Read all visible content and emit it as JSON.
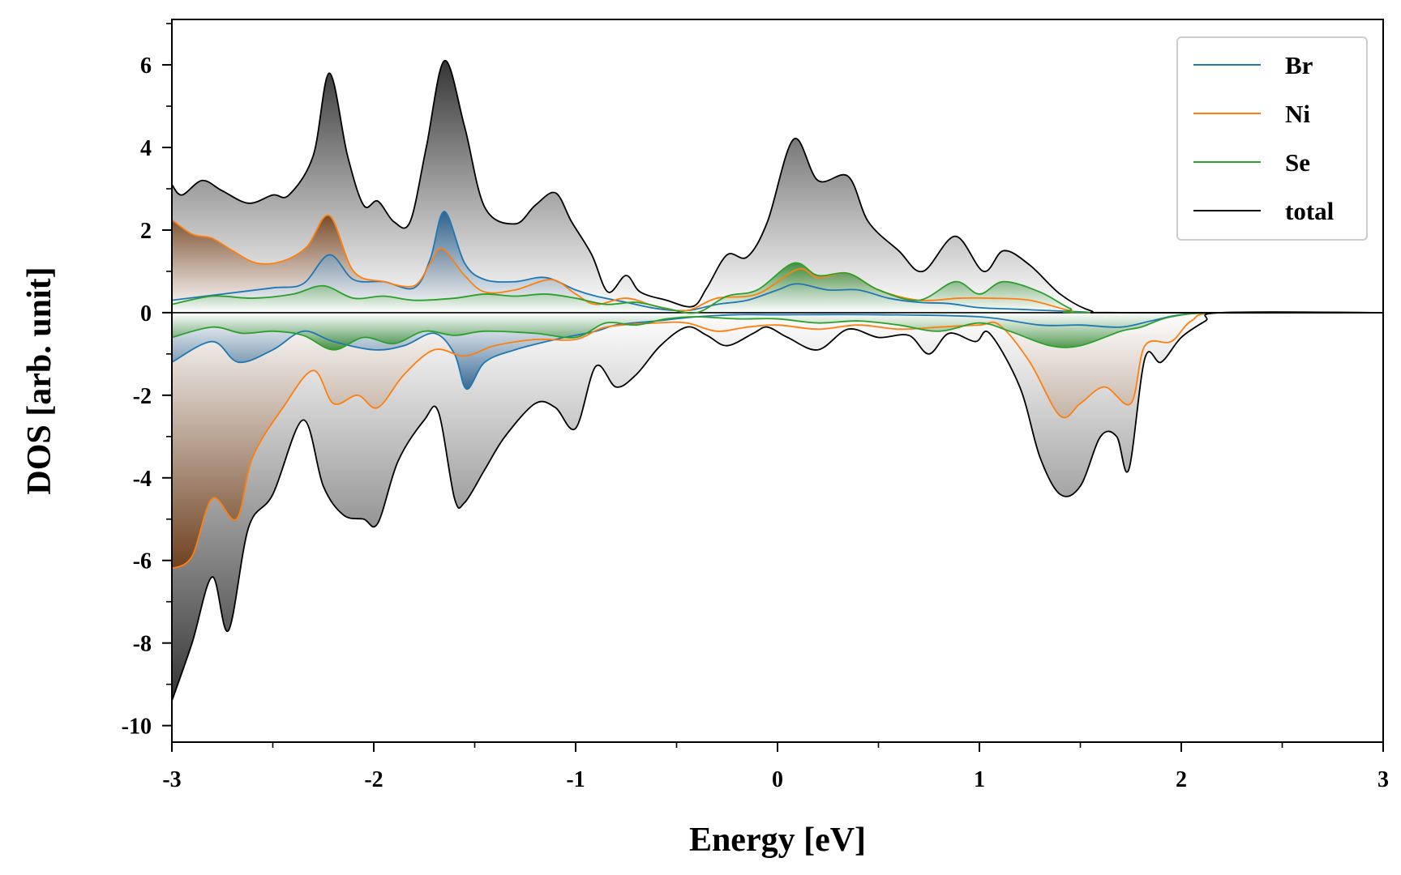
{
  "chart_data": {
    "type": "area",
    "title": "",
    "xlabel": "Energy [eV]",
    "ylabel": "DOS [arb. unit]",
    "xlim": [
      -3,
      3
    ],
    "ylim": [
      -10.4,
      7.1
    ],
    "xticks": [
      -3,
      -2,
      -1,
      0,
      1,
      2,
      3
    ],
    "yticks": [
      -10,
      -8,
      -6,
      -4,
      -2,
      0,
      2,
      4,
      6
    ],
    "grid": false,
    "legend_position": "upper-right",
    "series": [
      {
        "name": "Br",
        "color": "#1f77b4",
        "up": [
          [
            -3,
            0.3
          ],
          [
            -2.75,
            0.45
          ],
          [
            -2.5,
            0.6
          ],
          [
            -2.35,
            0.7
          ],
          [
            -2.22,
            1.4
          ],
          [
            -2.1,
            0.8
          ],
          [
            -1.95,
            0.75
          ],
          [
            -1.8,
            0.6
          ],
          [
            -1.72,
            1.3
          ],
          [
            -1.65,
            2.45
          ],
          [
            -1.55,
            1.2
          ],
          [
            -1.45,
            0.8
          ],
          [
            -1.3,
            0.75
          ],
          [
            -1.15,
            0.85
          ],
          [
            -1.0,
            0.55
          ],
          [
            -0.9,
            0.4
          ],
          [
            -0.75,
            0.25
          ],
          [
            -0.6,
            0.1
          ],
          [
            -0.45,
            0.05
          ],
          [
            -0.3,
            0.2
          ],
          [
            -0.15,
            0.3
          ],
          [
            0.0,
            0.55
          ],
          [
            0.1,
            0.7
          ],
          [
            0.25,
            0.55
          ],
          [
            0.4,
            0.55
          ],
          [
            0.55,
            0.35
          ],
          [
            0.7,
            0.25
          ],
          [
            0.85,
            0.22
          ],
          [
            1.0,
            0.12
          ],
          [
            1.2,
            0.08
          ],
          [
            1.5,
            0.02
          ],
          [
            1.7,
            0.0
          ],
          [
            3,
            0
          ]
        ],
        "down": [
          [
            -3,
            -1.2
          ],
          [
            -2.8,
            -0.7
          ],
          [
            -2.67,
            -1.2
          ],
          [
            -2.5,
            -0.9
          ],
          [
            -2.35,
            -0.45
          ],
          [
            -2.2,
            -0.7
          ],
          [
            -2.0,
            -0.9
          ],
          [
            -1.85,
            -0.8
          ],
          [
            -1.7,
            -0.5
          ],
          [
            -1.6,
            -1.0
          ],
          [
            -1.54,
            -1.85
          ],
          [
            -1.45,
            -1.2
          ],
          [
            -1.3,
            -0.9
          ],
          [
            -1.1,
            -0.65
          ],
          [
            -0.9,
            -0.45
          ],
          [
            -0.8,
            -0.3
          ],
          [
            -0.6,
            -0.2
          ],
          [
            -0.4,
            -0.1
          ],
          [
            -0.2,
            -0.05
          ],
          [
            0.0,
            -0.05
          ],
          [
            0.5,
            -0.05
          ],
          [
            1.0,
            -0.1
          ],
          [
            1.3,
            -0.3
          ],
          [
            1.5,
            -0.3
          ],
          [
            1.7,
            -0.35
          ],
          [
            1.85,
            -0.2
          ],
          [
            2.0,
            -0.05
          ],
          [
            2.2,
            0
          ],
          [
            3,
            0
          ]
        ]
      },
      {
        "name": "Ni",
        "color": "#ff7f0e",
        "up": [
          [
            -3,
            2.25
          ],
          [
            -2.9,
            1.9
          ],
          [
            -2.8,
            1.8
          ],
          [
            -2.7,
            1.5
          ],
          [
            -2.58,
            1.2
          ],
          [
            -2.45,
            1.25
          ],
          [
            -2.33,
            1.6
          ],
          [
            -2.22,
            2.35
          ],
          [
            -2.1,
            1.0
          ],
          [
            -1.95,
            0.75
          ],
          [
            -1.8,
            0.65
          ],
          [
            -1.72,
            1.2
          ],
          [
            -1.66,
            1.55
          ],
          [
            -1.55,
            0.9
          ],
          [
            -1.45,
            0.5
          ],
          [
            -1.3,
            0.55
          ],
          [
            -1.12,
            0.8
          ],
          [
            -1.0,
            0.45
          ],
          [
            -0.9,
            0.2
          ],
          [
            -0.75,
            0.35
          ],
          [
            -0.6,
            0.15
          ],
          [
            -0.45,
            0.05
          ],
          [
            -0.3,
            0.35
          ],
          [
            -0.1,
            0.45
          ],
          [
            0.1,
            1.05
          ],
          [
            0.2,
            0.85
          ],
          [
            0.35,
            0.95
          ],
          [
            0.5,
            0.55
          ],
          [
            0.7,
            0.3
          ],
          [
            0.9,
            0.35
          ],
          [
            1.05,
            0.35
          ],
          [
            1.25,
            0.3
          ],
          [
            1.45,
            0.05
          ],
          [
            1.6,
            0
          ],
          [
            3,
            0
          ]
        ],
        "down": [
          [
            -3,
            -6.2
          ],
          [
            -2.9,
            -5.9
          ],
          [
            -2.8,
            -4.5
          ],
          [
            -2.68,
            -5.0
          ],
          [
            -2.6,
            -3.5
          ],
          [
            -2.45,
            -2.3
          ],
          [
            -2.3,
            -1.4
          ],
          [
            -2.2,
            -2.2
          ],
          [
            -2.08,
            -2.0
          ],
          [
            -1.98,
            -2.3
          ],
          [
            -1.85,
            -1.5
          ],
          [
            -1.7,
            -0.9
          ],
          [
            -1.55,
            -1.05
          ],
          [
            -1.4,
            -0.8
          ],
          [
            -1.2,
            -0.65
          ],
          [
            -1.0,
            -0.65
          ],
          [
            -0.85,
            -0.35
          ],
          [
            -0.6,
            -0.25
          ],
          [
            -0.45,
            -0.25
          ],
          [
            -0.3,
            -0.45
          ],
          [
            -0.15,
            -0.35
          ],
          [
            0.0,
            -0.3
          ],
          [
            0.2,
            -0.4
          ],
          [
            0.4,
            -0.3
          ],
          [
            0.6,
            -0.4
          ],
          [
            0.8,
            -0.35
          ],
          [
            1.0,
            -0.3
          ],
          [
            1.1,
            -0.3
          ],
          [
            1.25,
            -1.2
          ],
          [
            1.4,
            -2.5
          ],
          [
            1.5,
            -2.2
          ],
          [
            1.62,
            -1.8
          ],
          [
            1.75,
            -2.2
          ],
          [
            1.82,
            -0.8
          ],
          [
            1.95,
            -0.7
          ],
          [
            2.05,
            -0.2
          ],
          [
            2.2,
            0
          ],
          [
            3,
            0
          ]
        ]
      },
      {
        "name": "Se",
        "color": "#2ca02c",
        "up": [
          [
            -3,
            0.2
          ],
          [
            -2.8,
            0.4
          ],
          [
            -2.6,
            0.35
          ],
          [
            -2.4,
            0.45
          ],
          [
            -2.25,
            0.65
          ],
          [
            -2.1,
            0.35
          ],
          [
            -1.95,
            0.4
          ],
          [
            -1.8,
            0.3
          ],
          [
            -1.6,
            0.35
          ],
          [
            -1.45,
            0.45
          ],
          [
            -1.3,
            0.4
          ],
          [
            -1.15,
            0.45
          ],
          [
            -1.0,
            0.35
          ],
          [
            -0.85,
            0.2
          ],
          [
            -0.7,
            0.25
          ],
          [
            -0.55,
            0.1
          ],
          [
            -0.4,
            0.0
          ],
          [
            -0.25,
            0.4
          ],
          [
            -0.1,
            0.55
          ],
          [
            0.08,
            1.2
          ],
          [
            0.2,
            0.9
          ],
          [
            0.35,
            0.95
          ],
          [
            0.5,
            0.55
          ],
          [
            0.7,
            0.3
          ],
          [
            0.88,
            0.75
          ],
          [
            1.0,
            0.45
          ],
          [
            1.12,
            0.75
          ],
          [
            1.3,
            0.5
          ],
          [
            1.45,
            0.1
          ],
          [
            1.55,
            0
          ],
          [
            3,
            0
          ]
        ],
        "down": [
          [
            -3,
            -0.6
          ],
          [
            -2.8,
            -0.35
          ],
          [
            -2.65,
            -0.5
          ],
          [
            -2.5,
            -0.45
          ],
          [
            -2.35,
            -0.55
          ],
          [
            -2.2,
            -0.9
          ],
          [
            -2.05,
            -0.6
          ],
          [
            -1.9,
            -0.75
          ],
          [
            -1.75,
            -0.45
          ],
          [
            -1.6,
            -0.55
          ],
          [
            -1.45,
            -0.45
          ],
          [
            -1.2,
            -0.5
          ],
          [
            -1.0,
            -0.6
          ],
          [
            -0.85,
            -0.25
          ],
          [
            -0.7,
            -0.3
          ],
          [
            -0.55,
            -0.15
          ],
          [
            -0.4,
            -0.1
          ],
          [
            -0.2,
            -0.15
          ],
          [
            0.0,
            -0.15
          ],
          [
            0.2,
            -0.25
          ],
          [
            0.4,
            -0.2
          ],
          [
            0.6,
            -0.3
          ],
          [
            0.8,
            -0.45
          ],
          [
            1.0,
            -0.25
          ],
          [
            1.15,
            -0.45
          ],
          [
            1.35,
            -0.8
          ],
          [
            1.5,
            -0.8
          ],
          [
            1.7,
            -0.45
          ],
          [
            1.8,
            -0.35
          ],
          [
            1.95,
            -0.1
          ],
          [
            2.2,
            0
          ],
          [
            3,
            0
          ]
        ]
      },
      {
        "name": "total",
        "color": "#000000",
        "up": [
          [
            -3,
            3.1
          ],
          [
            -2.95,
            2.85
          ],
          [
            -2.85,
            3.2
          ],
          [
            -2.75,
            2.95
          ],
          [
            -2.62,
            2.65
          ],
          [
            -2.5,
            2.85
          ],
          [
            -2.42,
            2.85
          ],
          [
            -2.3,
            3.8
          ],
          [
            -2.22,
            5.8
          ],
          [
            -2.13,
            3.8
          ],
          [
            -2.05,
            2.6
          ],
          [
            -1.98,
            2.7
          ],
          [
            -1.9,
            2.2
          ],
          [
            -1.82,
            2.2
          ],
          [
            -1.74,
            4.0
          ],
          [
            -1.65,
            6.1
          ],
          [
            -1.55,
            4.5
          ],
          [
            -1.45,
            2.55
          ],
          [
            -1.3,
            2.15
          ],
          [
            -1.2,
            2.6
          ],
          [
            -1.1,
            2.9
          ],
          [
            -1.02,
            2.2
          ],
          [
            -0.92,
            1.4
          ],
          [
            -0.84,
            0.5
          ],
          [
            -0.75,
            0.9
          ],
          [
            -0.68,
            0.5
          ],
          [
            -0.55,
            0.3
          ],
          [
            -0.42,
            0.15
          ],
          [
            -0.35,
            0.6
          ],
          [
            -0.25,
            1.4
          ],
          [
            -0.15,
            1.35
          ],
          [
            -0.05,
            2.2
          ],
          [
            0.08,
            4.2
          ],
          [
            0.2,
            3.2
          ],
          [
            0.35,
            3.3
          ],
          [
            0.45,
            2.2
          ],
          [
            0.6,
            1.5
          ],
          [
            0.72,
            1.0
          ],
          [
            0.88,
            1.85
          ],
          [
            1.02,
            1.0
          ],
          [
            1.12,
            1.5
          ],
          [
            1.25,
            1.15
          ],
          [
            1.4,
            0.45
          ],
          [
            1.55,
            0.05
          ],
          [
            1.7,
            0.0
          ],
          [
            3,
            0
          ]
        ],
        "down": [
          [
            -3,
            -9.4
          ],
          [
            -2.9,
            -8.0
          ],
          [
            -2.8,
            -6.4
          ],
          [
            -2.72,
            -7.7
          ],
          [
            -2.62,
            -5.2
          ],
          [
            -2.5,
            -4.4
          ],
          [
            -2.35,
            -2.6
          ],
          [
            -2.25,
            -4.2
          ],
          [
            -2.15,
            -4.9
          ],
          [
            -2.05,
            -5.0
          ],
          [
            -1.98,
            -5.1
          ],
          [
            -1.88,
            -3.6
          ],
          [
            -1.75,
            -2.6
          ],
          [
            -1.68,
            -2.4
          ],
          [
            -1.6,
            -4.5
          ],
          [
            -1.55,
            -4.6
          ],
          [
            -1.45,
            -3.8
          ],
          [
            -1.35,
            -3.0
          ],
          [
            -1.2,
            -2.2
          ],
          [
            -1.1,
            -2.3
          ],
          [
            -1.0,
            -2.8
          ],
          [
            -0.9,
            -1.3
          ],
          [
            -0.8,
            -1.8
          ],
          [
            -0.7,
            -1.5
          ],
          [
            -0.58,
            -0.8
          ],
          [
            -0.45,
            -0.35
          ],
          [
            -0.35,
            -0.55
          ],
          [
            -0.25,
            -0.8
          ],
          [
            -0.12,
            -0.5
          ],
          [
            -0.05,
            -0.35
          ],
          [
            0.05,
            -0.6
          ],
          [
            0.2,
            -0.9
          ],
          [
            0.35,
            -0.4
          ],
          [
            0.5,
            -0.6
          ],
          [
            0.65,
            -0.55
          ],
          [
            0.75,
            -1.0
          ],
          [
            0.85,
            -0.5
          ],
          [
            0.98,
            -0.7
          ],
          [
            1.05,
            -0.5
          ],
          [
            1.2,
            -1.8
          ],
          [
            1.3,
            -3.5
          ],
          [
            1.4,
            -4.4
          ],
          [
            1.5,
            -4.2
          ],
          [
            1.6,
            -3.0
          ],
          [
            1.68,
            -3.0
          ],
          [
            1.74,
            -3.8
          ],
          [
            1.82,
            -1.1
          ],
          [
            1.9,
            -1.2
          ],
          [
            2.0,
            -0.6
          ],
          [
            2.12,
            -0.2
          ],
          [
            2.2,
            0
          ],
          [
            3,
            0
          ]
        ]
      }
    ]
  }
}
